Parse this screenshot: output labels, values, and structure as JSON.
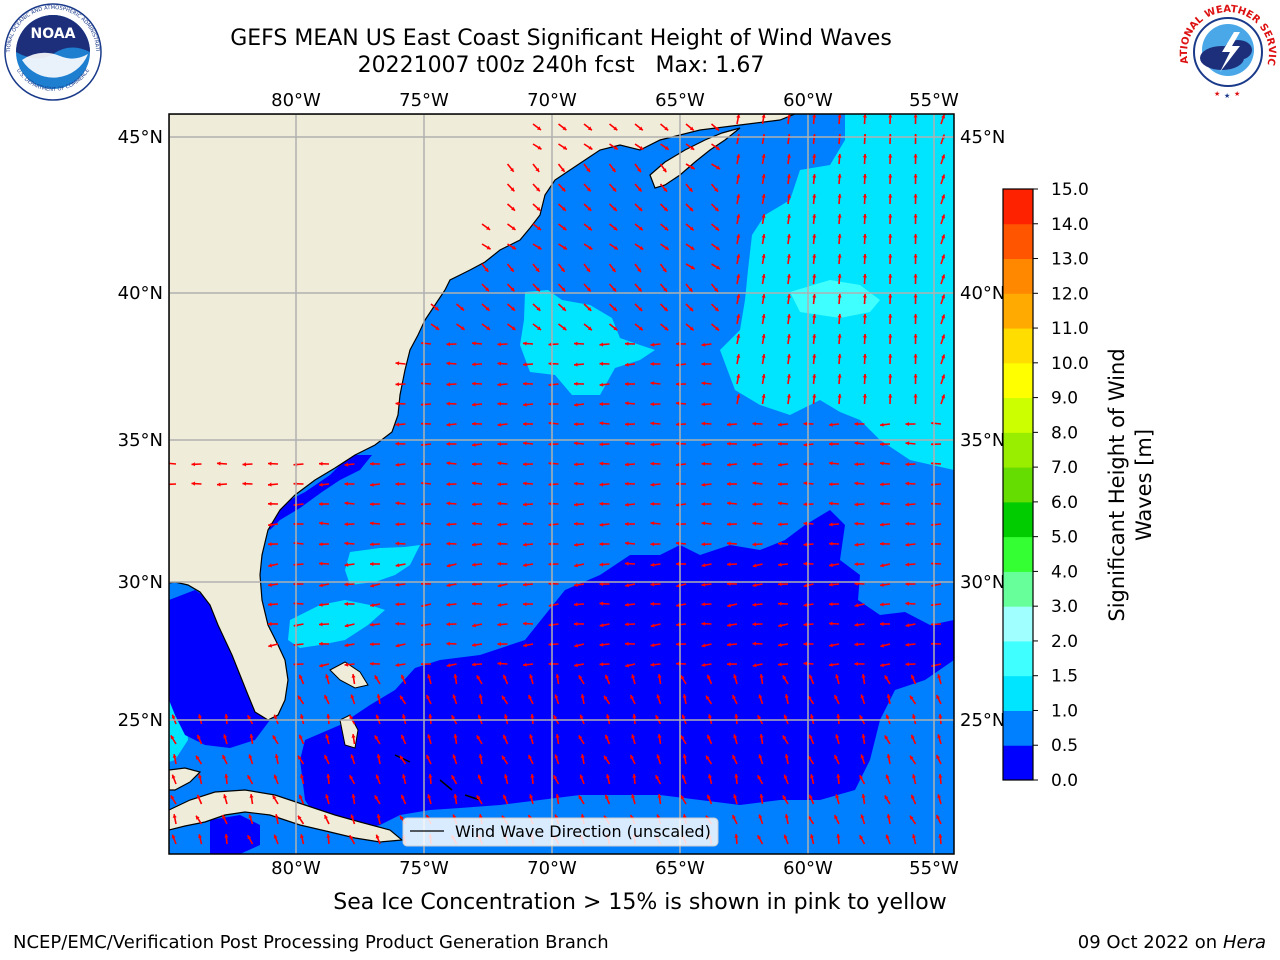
{
  "title": {
    "line1": "GEFS MEAN US East Coast Significant Height of Wind Waves",
    "line2": "20221007 t00z 240h fcst   Max: 1.67"
  },
  "logos": {
    "left": {
      "name": "NOAA",
      "ring_text": "NATIONAL OCEANIC AND ATMOSPHERIC ADMINISTRATION",
      "bottom_text": "U.S. DEPARTMENT OF COMMERCE"
    },
    "right": {
      "ring_text": "NATIONAL WEATHER SERVICE"
    }
  },
  "map": {
    "lon_labels": [
      "80°W",
      "75°W",
      "70°W",
      "65°W",
      "60°W",
      "55°W"
    ],
    "lat_labels": [
      "45°N",
      "40°N",
      "35°N",
      "30°N",
      "25°N"
    ],
    "legend_label": "Wind Wave Direction (unscaled)",
    "colors": {
      "land": "#efedd9",
      "arrow": "#ff0000",
      "grid": "#b0b0b0"
    }
  },
  "colorbar": {
    "label": "Significant Height of Wind Waves [m]",
    "ticks": [
      "0.0",
      "0.5",
      "1.0",
      "1.5",
      "2.0",
      "3.0",
      "4.0",
      "5.0",
      "6.0",
      "7.0",
      "8.0",
      "9.0",
      "10.0",
      "11.0",
      "12.0",
      "13.0",
      "14.0",
      "15.0"
    ],
    "colors": [
      "#0000ff",
      "#0080ff",
      "#00e5ff",
      "#40ffff",
      "#a0ffff",
      "#66ff99",
      "#33ff33",
      "#00cc00",
      "#66dd00",
      "#99ee00",
      "#ccff00",
      "#ffff00",
      "#ffdd00",
      "#ffaa00",
      "#ff8800",
      "#ff5500",
      "#ff2200",
      "#ff0000"
    ]
  },
  "note": "Sea Ice Concentration > 15% is shown in pink to yellow",
  "footer": {
    "left": "NCEP/EMC/Verification Post Processing Product Generation Branch",
    "date": "09 Oct 2022 on ",
    "machine": "Hera"
  }
}
